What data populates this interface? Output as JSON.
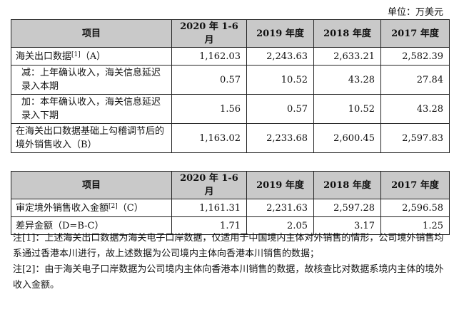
{
  "unit_label": "单位：万美元",
  "table1": {
    "headers": [
      "项目",
      "2020 年 1-6 月",
      "2019 年度",
      "2018 年度",
      "2017 年度"
    ],
    "rows": [
      {
        "label": "海关出口数据",
        "sup": "[1]",
        "suffix": "（A）",
        "values": [
          "1,162.03",
          "2,243.63",
          "2,633.21",
          "2,582.39"
        ]
      },
      {
        "label": "减：上年确认收入，海关信息延迟录入本期",
        "sup": "",
        "suffix": "",
        "values": [
          "0.57",
          "10.52",
          "43.28",
          "27.84"
        ]
      },
      {
        "label": "加：本年确认收入，海关信息延迟录入下期",
        "sup": "",
        "suffix": "",
        "values": [
          "1.56",
          "0.57",
          "10.52",
          "43.28"
        ]
      },
      {
        "label": "在海关出口数据基础上勾稽调节后的境外销售收入（B）",
        "sup": "",
        "suffix": "",
        "values": [
          "1,163.02",
          "2,233.68",
          "2,600.45",
          "2,597.83"
        ]
      }
    ]
  },
  "table2": {
    "headers": [
      "项目",
      "2020 年 1-6 月",
      "2019 年度",
      "2018 年度",
      "2017 年度"
    ],
    "rows": [
      {
        "label": "审定境外销售收入金额",
        "sup": "[2]",
        "suffix": "（C）",
        "values": [
          "1,161.31",
          "2,231.63",
          "2,597.28",
          "2,596.58"
        ]
      },
      {
        "label": "差异金额（D=B-C）",
        "sup": "",
        "suffix": "",
        "values": [
          "1.71",
          "2.05",
          "3.17",
          "1.25"
        ]
      }
    ]
  },
  "notes": [
    "注[1]：上述海关出口数据为海关电子口岸数据，仅适用于中国境内主体对外销售的情形，公司境外销售均系通过香港本川进行，故上述数据为公司境内主体向香港本川销售的数据；",
    "注[2]：由于海关电子口岸数据为公司境内主体向香港本川销售的数据，故核查比对数据系境内主体的境外收入金额。"
  ]
}
